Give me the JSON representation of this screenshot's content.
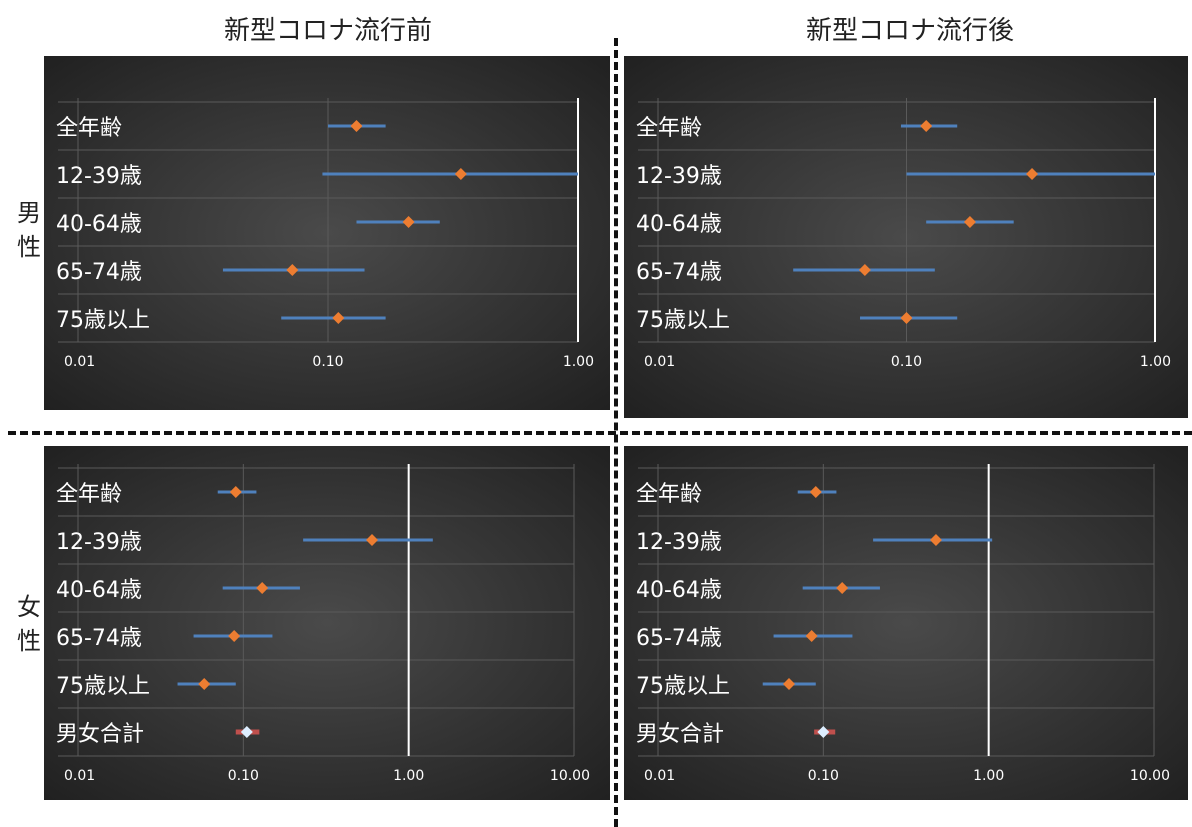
{
  "column_titles": [
    "新型コロナ流行前",
    "新型コロナ流行後"
  ],
  "row_labels": [
    "男\n性",
    "女\n性"
  ],
  "colors": {
    "panel_bg_inner": "#4a4a4a",
    "panel_bg_outer": "#1e1e1e",
    "ci_line": "#4f81bd",
    "point": "#ed7d31",
    "total_point": "#ddeeff",
    "total_line": "#c0504d",
    "ref_line": "#ffffff",
    "text": "#ffffff"
  },
  "chart_data": [
    {
      "type": "forest",
      "row": "男性",
      "column": "新型コロナ流行前",
      "x_scale": "log",
      "xlim": [
        0.01,
        1.0
      ],
      "x_ticks": [
        "0.01",
        "0.10",
        "1.00"
      ],
      "reference_line": 1.0,
      "categories": [
        "全年齢",
        "12-39歳",
        "40-64歳",
        "65-74歳",
        "75歳以上"
      ],
      "estimate": [
        0.13,
        0.34,
        0.21,
        0.072,
        0.11
      ],
      "lower": [
        0.1,
        0.095,
        0.13,
        0.038,
        0.065
      ],
      "upper": [
        0.17,
        1.0,
        0.28,
        0.14,
        0.17
      ]
    },
    {
      "type": "forest",
      "row": "男性",
      "column": "新型コロナ流行後",
      "x_scale": "log",
      "xlim": [
        0.01,
        1.0
      ],
      "x_ticks": [
        "0.01",
        "0.10",
        "1.00"
      ],
      "reference_line": 1.0,
      "categories": [
        "全年齢",
        "12-39歳",
        "40-64歳",
        "65-74歳",
        "75歳以上"
      ],
      "estimate": [
        0.12,
        0.32,
        0.18,
        0.068,
        0.1
      ],
      "lower": [
        0.095,
        0.1,
        0.12,
        0.035,
        0.065
      ],
      "upper": [
        0.16,
        1.0,
        0.27,
        0.13,
        0.16
      ]
    },
    {
      "type": "forest",
      "row": "女性",
      "column": "新型コロナ流行前",
      "x_scale": "log",
      "xlim": [
        0.01,
        10.0
      ],
      "x_ticks": [
        "0.01",
        "0.10",
        "1.00",
        "10.00"
      ],
      "reference_line": 1.0,
      "categories": [
        "全年齢",
        "12-39歳",
        "40-64歳",
        "65-74歳",
        "75歳以上",
        "男女合計"
      ],
      "estimate": [
        0.09,
        0.6,
        0.13,
        0.088,
        0.058,
        0.105
      ],
      "lower": [
        0.07,
        0.23,
        0.075,
        0.05,
        0.04,
        0.09
      ],
      "upper": [
        0.12,
        1.4,
        0.22,
        0.15,
        0.09,
        0.125
      ],
      "total_row": "男女合計"
    },
    {
      "type": "forest",
      "row": "女性",
      "column": "新型コロナ流行後",
      "x_scale": "log",
      "xlim": [
        0.01,
        10.0
      ],
      "x_ticks": [
        "0.01",
        "0.10",
        "1.00",
        "10.00"
      ],
      "reference_line": 1.0,
      "categories": [
        "全年齢",
        "12-39歳",
        "40-64歳",
        "65-74歳",
        "75歳以上",
        "男女合計"
      ],
      "estimate": [
        0.09,
        0.48,
        0.13,
        0.085,
        0.062,
        0.1
      ],
      "lower": [
        0.07,
        0.2,
        0.075,
        0.05,
        0.043,
        0.088
      ],
      "upper": [
        0.12,
        1.05,
        0.22,
        0.15,
        0.09,
        0.118
      ],
      "total_row": "男女合計"
    }
  ]
}
